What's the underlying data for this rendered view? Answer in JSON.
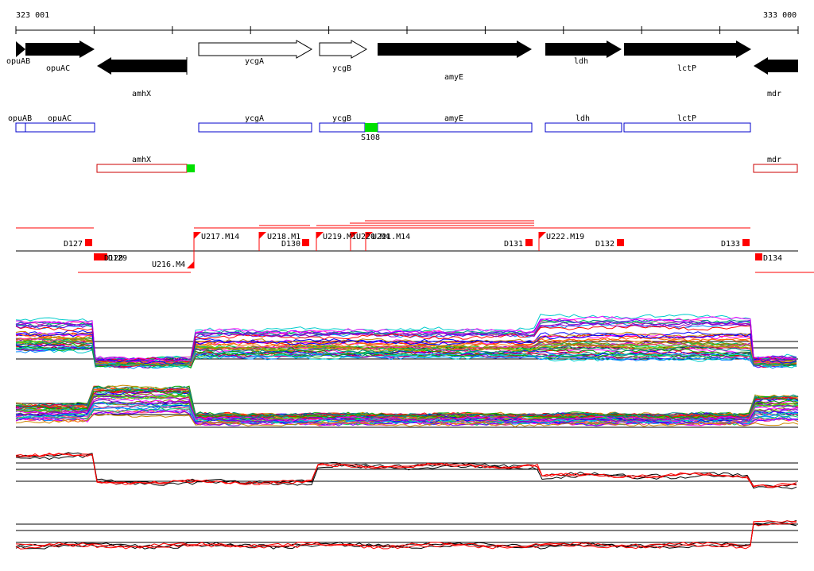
{
  "ruler": {
    "start_label": "323 001",
    "end_label": "333 000"
  },
  "genes": [
    {
      "label": "opuAB",
      "strand": "+",
      "style": "filled"
    },
    {
      "label": "opuAC",
      "strand": "+",
      "style": "filled"
    },
    {
      "label": "amhX",
      "strand": "-",
      "style": "filled"
    },
    {
      "label": "ycgA",
      "strand": "+",
      "style": "outline"
    },
    {
      "label": "ycgB",
      "strand": "+",
      "style": "outline"
    },
    {
      "label": "amyE",
      "strand": "+",
      "style": "filled"
    },
    {
      "label": "ldh",
      "strand": "+",
      "style": "filled"
    },
    {
      "label": "lctP",
      "strand": "+",
      "style": "filled"
    },
    {
      "label": "mdr",
      "strand": "-",
      "style": "filled"
    }
  ],
  "forward_boxes": [
    "opuAB",
    "opuAC",
    "ycgA",
    "ycgB",
    "amyE",
    "ldh",
    "lctP"
  ],
  "reverse_boxes": [
    "amhX",
    "mdr"
  ],
  "sites": [
    {
      "label": "S108",
      "color": "#00e000"
    }
  ],
  "upstream_markers": [
    "U217.M14",
    "U218.M1",
    "U219.M1",
    "U220.M4",
    "U221.M14",
    "U222.M19"
  ],
  "downstream_markers": [
    "D127",
    "D128",
    "D129",
    "D130",
    "D131",
    "D132",
    "D133",
    "D134"
  ],
  "reverse_marker": "U216.M4",
  "colors": {
    "forward_gene": "#0000cc",
    "reverse_gene": "#cc0000",
    "marker": "#ff0000",
    "site": "#00e000",
    "text": "#000000"
  }
}
